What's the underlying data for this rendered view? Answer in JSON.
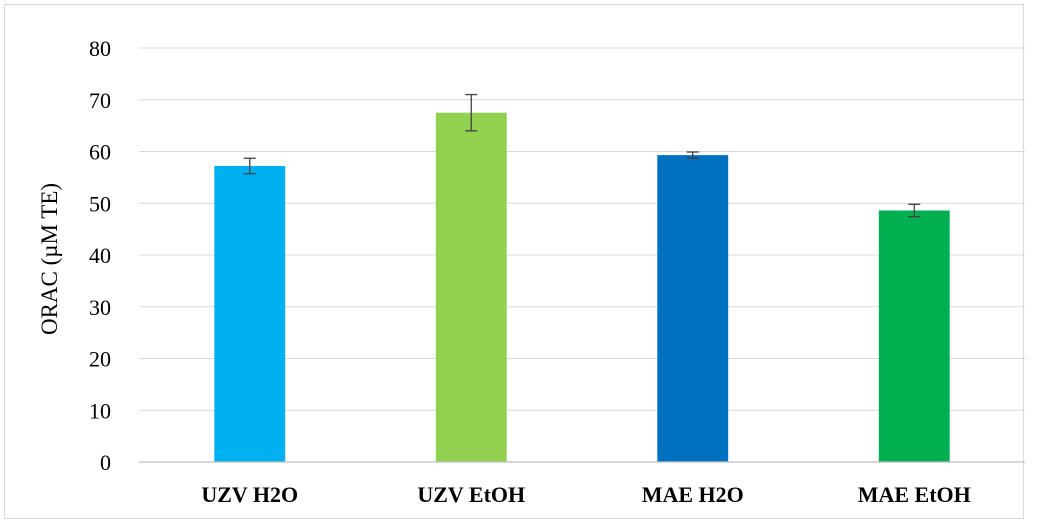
{
  "chart_data": {
    "type": "bar",
    "title": "",
    "xlabel": "",
    "ylabel": "ORAC (µM TE)",
    "ylim": [
      0,
      80
    ],
    "yticks": [
      0,
      10,
      20,
      30,
      40,
      50,
      60,
      70,
      80
    ],
    "grid": true,
    "legend": "none",
    "categories": [
      "UZV H2O",
      "UZV EtOH",
      "MAE H2O",
      "MAE EtOH"
    ],
    "values": [
      57.2,
      67.5,
      59.3,
      48.6
    ],
    "errors": [
      1.5,
      3.5,
      0.6,
      1.2
    ],
    "colors": [
      "#00b0f0",
      "#92d050",
      "#0070c0",
      "#00b050"
    ],
    "error_bar_color": "#404040",
    "gridline_color": "#d9d9d9",
    "axis_color": "#bfbfbf"
  }
}
